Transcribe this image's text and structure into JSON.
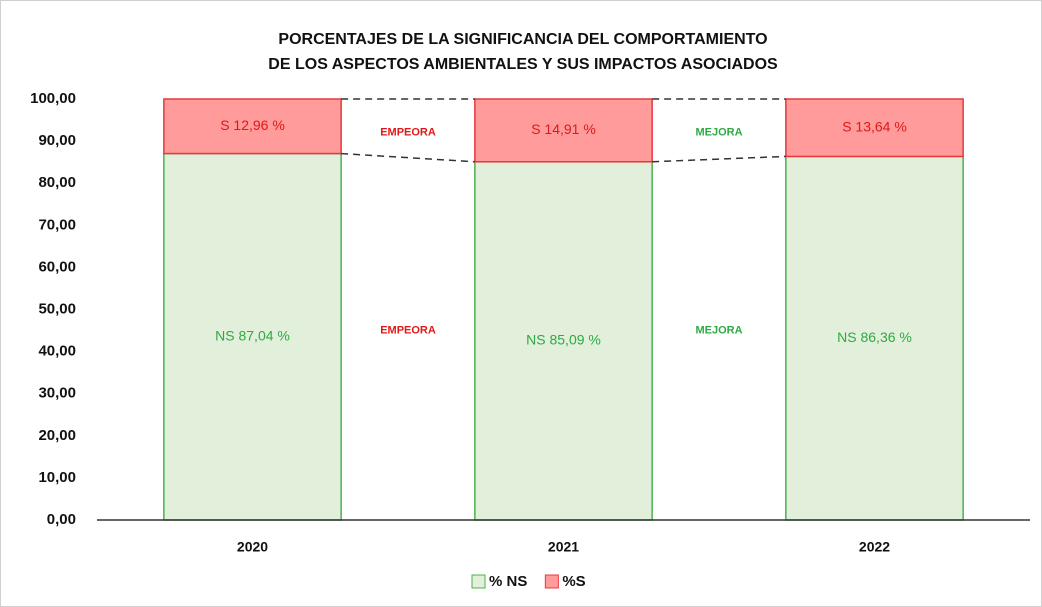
{
  "chart_data": {
    "type": "stacked_bar",
    "title": [
      "PORCENTAJES DE LA SIGNIFICANCIA DEL COMPORTAMIENTO",
      "DE LOS ASPECTOS AMBIENTALES Y SUS IMPACTOS ASOCIADOS"
    ],
    "categories": [
      "2020",
      "2021",
      "2022"
    ],
    "series": [
      {
        "name": "% NS",
        "color": "#e2efda",
        "edge": "#4cb050",
        "label_color": "#2eaa45",
        "values": [
          87.04,
          85.09,
          86.36
        ],
        "value_labels": [
          "NS 87,04 %",
          "NS 85,09 %",
          "NS 86,36 %"
        ]
      },
      {
        "name": "%S",
        "color": "#ff9b9b",
        "edge": "#e8383c",
        "label_color": "#e01818",
        "values": [
          12.96,
          14.91,
          13.64
        ],
        "value_labels": [
          "S 12,96 %",
          "S 14,91 %",
          "S 13,64 %"
        ]
      }
    ],
    "annotations": [
      {
        "text": "EMPEORA",
        "color": "#e01818"
      },
      {
        "text": "EMPEORA",
        "color": "#e01818"
      },
      {
        "text": "MEJORA",
        "color": "#2eaa45"
      },
      {
        "text": "MEJORA",
        "color": "#2eaa45"
      }
    ],
    "ylim": [
      0,
      100
    ],
    "yticks": [
      {
        "value": 0,
        "label": "0,00"
      },
      {
        "value": 10,
        "label": "10,00"
      },
      {
        "value": 20,
        "label": "20,00"
      },
      {
        "value": 30,
        "label": "30,00"
      },
      {
        "value": 40,
        "label": "40,00"
      },
      {
        "value": 50,
        "label": "50,00"
      },
      {
        "value": 60,
        "label": "60,00"
      },
      {
        "value": 70,
        "label": "70,00"
      },
      {
        "value": 80,
        "label": "80,00"
      },
      {
        "value": 90,
        "label": "90,00"
      },
      {
        "value": 100,
        "label": "100,00"
      }
    ],
    "grid": false,
    "legend": "bottom"
  }
}
